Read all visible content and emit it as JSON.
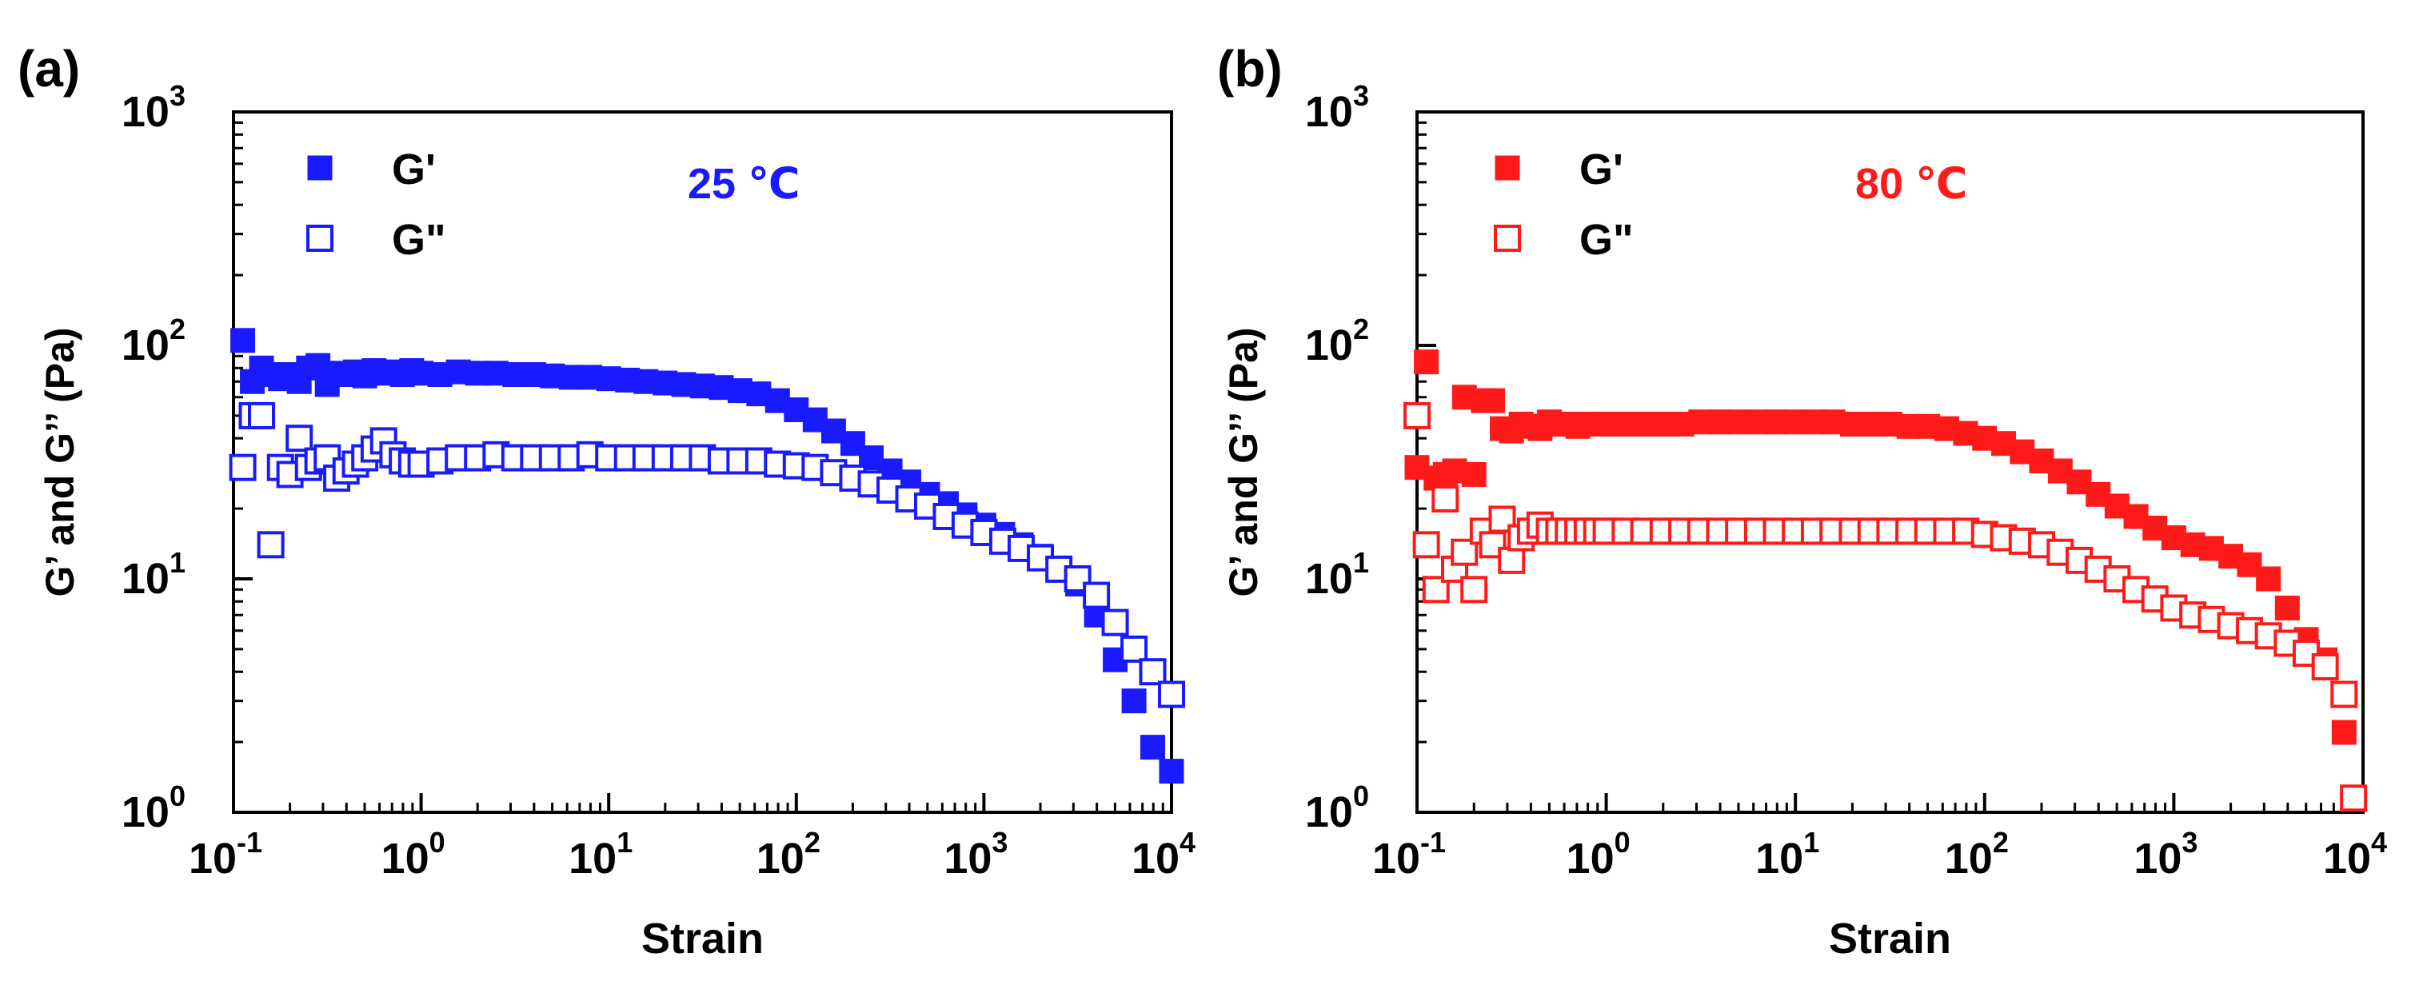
{
  "chart_data": [
    {
      "panel_label": "(a)",
      "type": "scatter",
      "x_scale": "log",
      "y_scale": "log",
      "xlim": [
        0.1,
        10000
      ],
      "ylim": [
        1,
        1000
      ],
      "xlabel": "Strain",
      "ylabel": "G’ and G’’ (Pa)",
      "x_ticks": [
        {
          "value": 0.1,
          "base": "10",
          "exp": "-1"
        },
        {
          "value": 1,
          "base": "10",
          "exp": "0"
        },
        {
          "value": 10,
          "base": "10",
          "exp": "1"
        },
        {
          "value": 100,
          "base": "10",
          "exp": "2"
        },
        {
          "value": 1000,
          "base": "10",
          "exp": "3"
        },
        {
          "value": 10000,
          "base": "10",
          "exp": "4"
        }
      ],
      "y_ticks": [
        {
          "value": 1,
          "base": "10",
          "exp": "0"
        },
        {
          "value": 10,
          "base": "10",
          "exp": "1"
        },
        {
          "value": 100,
          "base": "10",
          "exp": "2"
        },
        {
          "value": 1000,
          "base": "10",
          "exp": "3"
        }
      ],
      "annotation": "25 ℃",
      "color": "#1a1aff",
      "legend_position": "top-left",
      "series": [
        {
          "name": "G'",
          "marker": "filled-square",
          "x": [
            0.112,
            0.126,
            0.141,
            0.158,
            0.178,
            0.2,
            0.224,
            0.251,
            0.282,
            0.316,
            0.355,
            0.398,
            0.447,
            0.501,
            0.562,
            0.631,
            0.708,
            0.794,
            0.891,
            1,
            1.26,
            1.58,
            2,
            2.51,
            3.16,
            3.98,
            5.01,
            6.31,
            7.94,
            10,
            12.6,
            15.8,
            20,
            25.1,
            31.6,
            39.8,
            50.1,
            63.1,
            79.4,
            100,
            126,
            158,
            200,
            251,
            316,
            398,
            501,
            631,
            794,
            1000,
            1260,
            1580,
            2000,
            2510,
            3160,
            3980,
            5010,
            6310,
            7940,
            10000
          ],
          "y": [
            105,
            70,
            80,
            75,
            72,
            75,
            70,
            80,
            82,
            68,
            76,
            75,
            77,
            74,
            78,
            76,
            77,
            75,
            78,
            76,
            75,
            77,
            76,
            76,
            75,
            75,
            74,
            73,
            73,
            72,
            71,
            70,
            69,
            68,
            67,
            66,
            64,
            62,
            58,
            53,
            48,
            43,
            38,
            33,
            29,
            26,
            23,
            21,
            18.8,
            17,
            15.5,
            14,
            12.5,
            11,
            9.5,
            7,
            4.5,
            3,
            1.9,
            1.5
          ]
        },
        {
          "name": "G\"",
          "marker": "open-square",
          "x": [
            0.112,
            0.126,
            0.141,
            0.158,
            0.178,
            0.2,
            0.224,
            0.251,
            0.282,
            0.316,
            0.355,
            0.398,
            0.447,
            0.501,
            0.562,
            0.631,
            0.708,
            0.794,
            0.891,
            1,
            1.26,
            1.58,
            2,
            2.51,
            3.16,
            3.98,
            5.01,
            6.31,
            7.94,
            10,
            12.6,
            15.8,
            20,
            25.1,
            31.6,
            39.8,
            50.1,
            63.1,
            79.4,
            100,
            126,
            158,
            200,
            251,
            316,
            398,
            501,
            631,
            794,
            1000,
            1260,
            1580,
            2000,
            2510,
            3160,
            3980,
            5010,
            6310,
            7940,
            10000
          ],
          "y": [
            30,
            50,
            50,
            14,
            30,
            28,
            40,
            30,
            32,
            33,
            27,
            29,
            31,
            33,
            36,
            39,
            34,
            32,
            31,
            31,
            32,
            33,
            33,
            34,
            33,
            33,
            33,
            33,
            34,
            33,
            33,
            33,
            33,
            33,
            33,
            32,
            32,
            32,
            31,
            30.5,
            30,
            28.5,
            27,
            25.5,
            24,
            22,
            20.5,
            18.5,
            17,
            15.8,
            14.5,
            13.5,
            12.3,
            11,
            10,
            8.5,
            6.5,
            5,
            4,
            3.2
          ]
        }
      ]
    },
    {
      "panel_label": "(b)",
      "type": "scatter",
      "x_scale": "log",
      "y_scale": "log",
      "xlim": [
        0.1,
        10000
      ],
      "ylim": [
        1,
        1000
      ],
      "xlabel": "Strain",
      "ylabel": "G’ and G’’ (Pa)",
      "x_ticks": [
        {
          "value": 0.1,
          "base": "10",
          "exp": "-1"
        },
        {
          "value": 1,
          "base": "10",
          "exp": "0"
        },
        {
          "value": 10,
          "base": "10",
          "exp": "1"
        },
        {
          "value": 100,
          "base": "10",
          "exp": "2"
        },
        {
          "value": 1000,
          "base": "10",
          "exp": "3"
        },
        {
          "value": 10000,
          "base": "10",
          "exp": "4"
        }
      ],
      "y_ticks": [
        {
          "value": 1,
          "base": "10",
          "exp": "0"
        },
        {
          "value": 10,
          "base": "10",
          "exp": "1"
        },
        {
          "value": 100,
          "base": "10",
          "exp": "2"
        },
        {
          "value": 1000,
          "base": "10",
          "exp": "3"
        }
      ],
      "annotation": "80 ℃",
      "color": "#ff1a1a",
      "legend_position": "top-left",
      "series": [
        {
          "name": "G'",
          "marker": "filled-square",
          "x": [
            0.1,
            0.112,
            0.126,
            0.141,
            0.158,
            0.178,
            0.2,
            0.224,
            0.251,
            0.282,
            0.316,
            0.355,
            0.398,
            0.447,
            0.501,
            0.562,
            0.631,
            0.708,
            0.794,
            0.891,
            1,
            1.26,
            1.58,
            2,
            2.51,
            3.16,
            3.98,
            5.01,
            6.31,
            7.94,
            10,
            12.6,
            15.8,
            20,
            25.1,
            31.6,
            39.8,
            50.1,
            63.1,
            79.4,
            100,
            126,
            158,
            200,
            251,
            316,
            398,
            501,
            631,
            794,
            1000,
            1260,
            1580,
            2000,
            2510,
            3160,
            3980,
            5010,
            6310,
            7940
          ],
          "y": [
            30,
            85,
            27,
            28,
            29,
            60,
            28,
            58,
            58,
            44,
            43,
            46,
            45,
            44,
            47,
            46,
            46,
            45,
            46,
            46,
            46,
            46,
            46,
            46,
            46,
            47,
            47,
            47,
            47,
            47,
            47,
            47,
            47,
            46,
            46,
            46,
            45,
            45,
            44,
            42,
            40,
            38,
            35,
            32,
            29,
            26,
            23,
            20.5,
            18.5,
            16.5,
            15,
            14,
            13.5,
            12.5,
            11.5,
            10,
            7.5,
            5.5,
            4.5,
            2.2
          ]
        },
        {
          "name": "G\"",
          "marker": "open-square",
          "x": [
            0.1,
            0.112,
            0.126,
            0.141,
            0.158,
            0.178,
            0.2,
            0.224,
            0.251,
            0.282,
            0.316,
            0.355,
            0.398,
            0.447,
            0.501,
            0.562,
            0.631,
            0.708,
            0.794,
            0.891,
            1,
            1.26,
            1.58,
            2,
            2.51,
            3.16,
            3.98,
            5.01,
            6.31,
            7.94,
            10,
            12.6,
            15.8,
            20,
            25.1,
            31.6,
            39.8,
            50.1,
            63.1,
            79.4,
            100,
            126,
            158,
            200,
            251,
            316,
            398,
            501,
            631,
            794,
            1000,
            1260,
            1580,
            2000,
            2510,
            3160,
            3980,
            5010,
            6310,
            7940,
            8910
          ],
          "y": [
            50,
            14,
            9,
            22,
            11,
            13,
            9,
            16,
            14,
            18,
            12,
            15,
            16,
            17,
            16,
            16,
            16,
            16,
            16,
            16,
            16,
            16,
            16,
            16,
            16,
            16,
            16,
            16,
            16,
            16,
            16,
            16,
            16,
            16,
            16,
            16,
            16,
            16,
            16,
            16,
            15.5,
            15,
            14.5,
            14,
            13,
            12,
            11,
            10,
            9,
            8.2,
            7.5,
            7,
            6.7,
            6.3,
            6,
            5.7,
            5.3,
            4.8,
            4.2,
            3.2,
            1.15
          ]
        }
      ]
    }
  ]
}
